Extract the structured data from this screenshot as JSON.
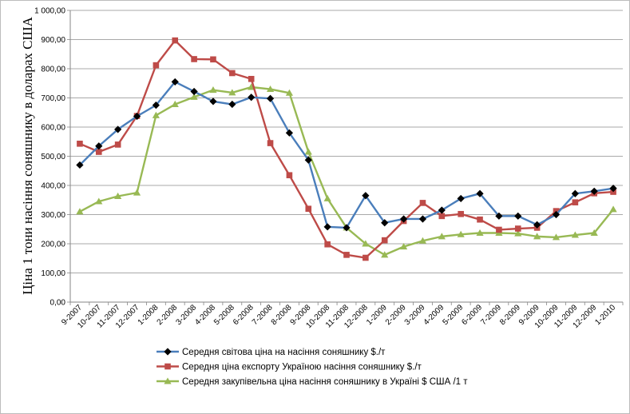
{
  "chart_data": {
    "type": "line",
    "ylabel": "Ціна 1 тони насіння соняшнику  в доларах США",
    "ylim": [
      0,
      1000
    ],
    "yticks": [
      "0,00",
      "100,00",
      "200,00",
      "300,00",
      "400,00",
      "500,00",
      "600,00",
      "700,00",
      "800,00",
      "900,00",
      "1 000,00"
    ],
    "grid": true,
    "legend_position": "bottom",
    "categories": [
      "9-2007",
      "10-2007",
      "11-2007",
      "12-2007",
      "1-2008",
      "2-2008",
      "3-2008",
      "4-2008",
      "5-2008",
      "6-2008",
      "7-2008",
      "8-2008",
      "9-2008",
      "10-2008",
      "11-2008",
      "12-2008",
      "1-2009",
      "2-2009",
      "3-2009",
      "4-2009",
      "5-2009",
      "6-2009",
      "7-2009",
      "8-2009",
      "9-2009",
      "10-2009",
      "11-2009",
      "12-2009",
      "1-2010"
    ],
    "series": [
      {
        "name": "Середня світова ціна на насіння соняшнику $./т",
        "color": "#4a7ebb",
        "marker": "diamond",
        "marker_color": "#000000",
        "values": [
          470,
          535,
          592,
          637,
          675,
          755,
          722,
          688,
          678,
          702,
          698,
          580,
          487,
          258,
          255,
          365,
          272,
          285,
          285,
          315,
          355,
          372,
          295,
          295,
          265,
          300,
          372,
          380,
          390
        ]
      },
      {
        "name": "Середня ціна експорту Україною насіння соняшнику $./т",
        "color": "#be4b48",
        "marker": "square",
        "marker_color": "#be4b48",
        "values": [
          543,
          515,
          540,
          638,
          812,
          897,
          833,
          832,
          785,
          765,
          545,
          435,
          320,
          198,
          162,
          152,
          212,
          278,
          340,
          295,
          302,
          283,
          248,
          252,
          255,
          312,
          342,
          373,
          378
        ]
      },
      {
        "name": "Середня закупівельна ціна насіння соняшнику в Україні   $ США /1 т",
        "color": "#98b954",
        "marker": "triangle",
        "marker_color": "#98b954",
        "values": [
          310,
          345,
          363,
          375,
          640,
          678,
          703,
          727,
          718,
          737,
          730,
          717,
          515,
          355,
          255,
          200,
          162,
          190,
          210,
          225,
          232,
          237,
          237,
          235,
          225,
          222,
          230,
          237,
          318
        ]
      }
    ]
  }
}
